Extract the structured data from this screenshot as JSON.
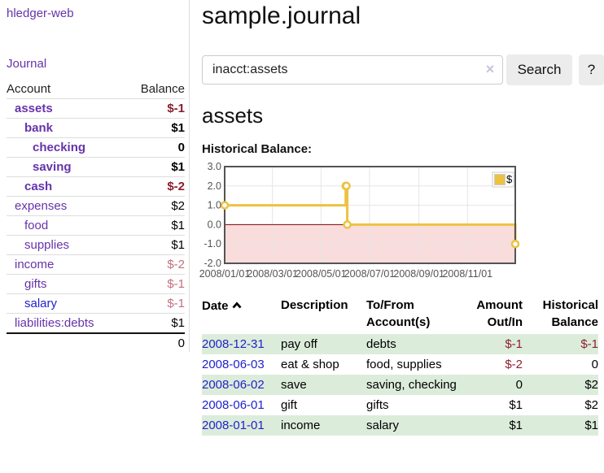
{
  "colors": {
    "purple_link": "#6633aa",
    "blue_link": "#2222cc",
    "negative_strong": "#8b1c2c",
    "negative_soft": "#c2707e",
    "table_negative": "#8f1f2f",
    "table_stripe_green": "#dcecdb",
    "button_bg": "#ececec"
  },
  "sidebar": {
    "brand": "hledger-web",
    "nav": {
      "journal": "Journal"
    },
    "table_headers": {
      "account": "Account",
      "balance": "Balance"
    },
    "accounts": [
      {
        "name": "assets",
        "balance": "$-1"
      },
      {
        "name": "bank",
        "balance": "$1"
      },
      {
        "name": "checking",
        "balance": "0"
      },
      {
        "name": "saving",
        "balance": "$1"
      },
      {
        "name": "cash",
        "balance": "$-2"
      },
      {
        "name": "expenses",
        "balance": "$2"
      },
      {
        "name": "food",
        "balance": "$1"
      },
      {
        "name": "supplies",
        "balance": "$1"
      },
      {
        "name": "income",
        "balance": "$-2"
      },
      {
        "name": "gifts",
        "balance": "$-1"
      },
      {
        "name": "salary",
        "balance": "$-1"
      },
      {
        "name": "liabilities:debts",
        "balance": "$1"
      }
    ],
    "total": "0"
  },
  "main": {
    "title": "sample.journal"
  },
  "search": {
    "value": "inacct:assets",
    "clear_icon": "×",
    "search_button": "Search",
    "help_button": "?"
  },
  "register": {
    "heading": "assets",
    "chart_title": "Historical Balance:"
  },
  "chart_data": {
    "type": "line",
    "step": true,
    "title": "Historical Balance",
    "series": [
      {
        "name": "$",
        "color": "#edc240",
        "points": [
          [
            "2008-01-01",
            1
          ],
          [
            "2008-06-01",
            2
          ],
          [
            "2008-06-02",
            2
          ],
          [
            "2008-06-03",
            0
          ],
          [
            "2008-12-31",
            -1
          ]
        ]
      }
    ],
    "xmin": "2008-01-01",
    "xmax": "2008-12-31",
    "xticks": [
      {
        "date": "2008-01-01",
        "label": "2008/01/01"
      },
      {
        "date": "2008-03-01",
        "label": "2008/03/01"
      },
      {
        "date": "2008-05-01",
        "label": "2008/05/01"
      },
      {
        "date": "2008-07-01",
        "label": "2008/07/01"
      },
      {
        "date": "2008-09-01",
        "label": "2008/09/01"
      },
      {
        "date": "2008-11-01",
        "label": "2008/11/01"
      }
    ],
    "yticks": [
      3,
      2,
      1,
      0,
      -1,
      -2
    ],
    "ylim": [
      -2,
      3
    ],
    "grid": true,
    "legend_position": "top-right",
    "grid_color": "#e6e6e6",
    "border_color": "#545454",
    "zero_line_color": "#800000",
    "negative_region_color": "#f9dcdc",
    "axis_label_color": "#545454",
    "marker_fill": "#ffffff"
  },
  "table": {
    "headers": {
      "date": "Date",
      "description": "Description",
      "tofrom": "To/From Account(s)",
      "amount": "Amount Out/In",
      "balance": "Historical Balance"
    },
    "rows": [
      {
        "date": "2008-12-31",
        "description": "pay off",
        "tofrom": "debts",
        "amount": "$-1",
        "balance": "$-1"
      },
      {
        "date": "2008-06-03",
        "description": "eat & shop",
        "tofrom": "food, supplies",
        "amount": "$-2",
        "balance": "0"
      },
      {
        "date": "2008-06-02",
        "description": "save",
        "tofrom": "saving, checking",
        "amount": "0",
        "balance": "$2"
      },
      {
        "date": "2008-06-01",
        "description": "gift",
        "tofrom": "gifts",
        "amount": "$1",
        "balance": "$2"
      },
      {
        "date": "2008-01-01",
        "description": "income",
        "tofrom": "salary",
        "amount": "$1",
        "balance": "$1"
      }
    ]
  }
}
